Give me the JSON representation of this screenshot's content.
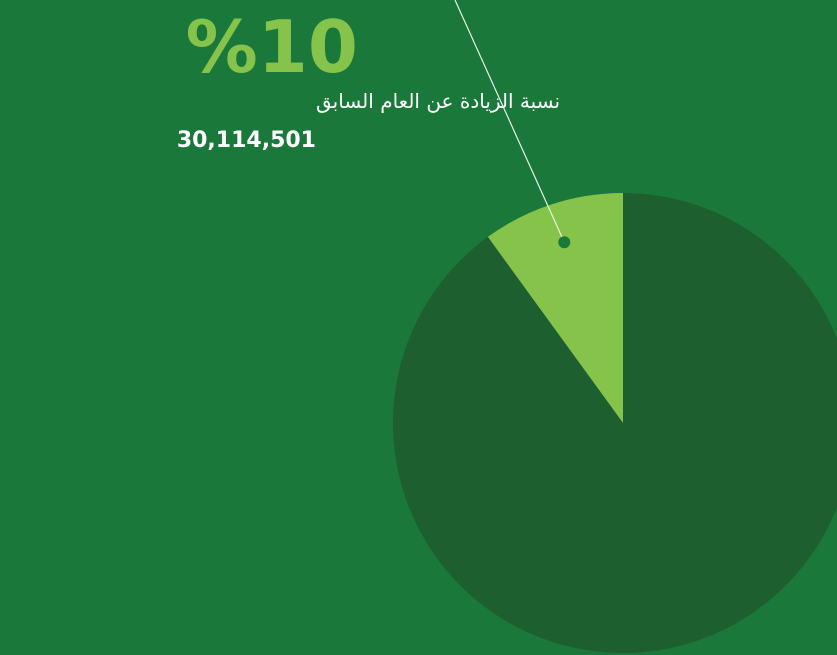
{
  "chart_data": {
    "type": "pie",
    "values": [
      10,
      90
    ],
    "value_labels": [
      "%10",
      null
    ],
    "colors": [
      "#86c34a",
      "#1e5f30"
    ],
    "annotations": [
      "نسبة الزيادة عن العام السابق",
      "30,114,501"
    ]
  }
}
